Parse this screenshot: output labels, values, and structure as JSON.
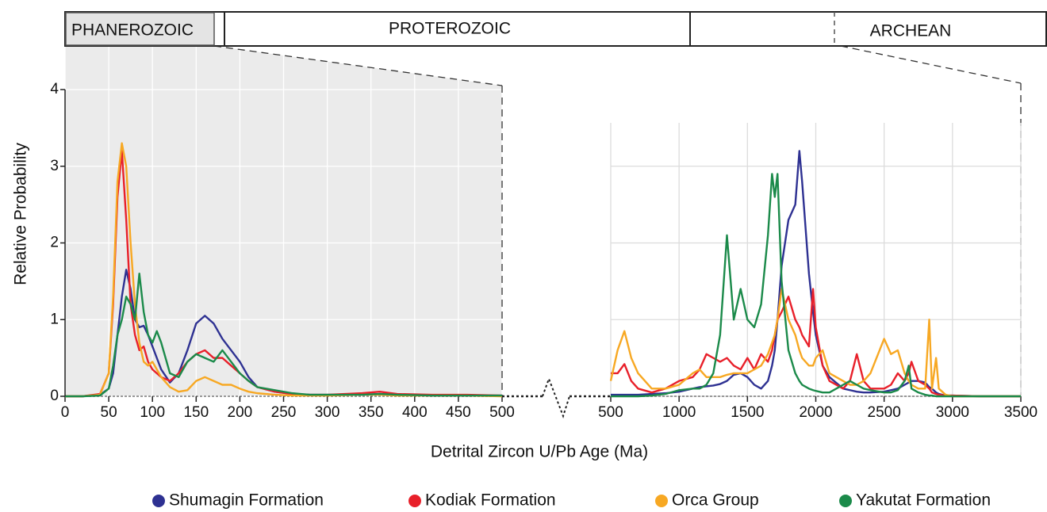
{
  "eons": [
    "PHANEROZOIC",
    "PROTEROZOIC",
    "ARCHEAN"
  ],
  "chart_data": [
    {
      "type": "line",
      "ylabel": "Relative Probability",
      "xlabel": "Detrital Zircon U/Pb Age (Ma)",
      "xlim": [
        0,
        500
      ],
      "xticks": [
        0,
        50,
        100,
        150,
        200,
        250,
        300,
        350,
        400,
        450,
        500
      ],
      "ylim": [
        0,
        4
      ],
      "yticks": [
        0,
        1,
        2,
        3,
        4
      ],
      "grid": true,
      "x": [
        0,
        20,
        40,
        50,
        55,
        60,
        65,
        70,
        75,
        80,
        85,
        90,
        95,
        100,
        105,
        110,
        120,
        130,
        140,
        150,
        160,
        170,
        180,
        190,
        200,
        210,
        220,
        240,
        260,
        280,
        300,
        340,
        360,
        380,
        420,
        460,
        500
      ],
      "series": [
        {
          "name": "Shumagin Formation",
          "color": "#2e3192",
          "values": [
            0,
            0,
            0.02,
            0.1,
            0.3,
            0.8,
            1.3,
            1.65,
            1.4,
            1.0,
            0.9,
            0.92,
            0.8,
            0.65,
            0.5,
            0.35,
            0.18,
            0.3,
            0.6,
            0.95,
            1.05,
            0.95,
            0.75,
            0.6,
            0.45,
            0.25,
            0.12,
            0.06,
            0.03,
            0.02,
            0.02,
            0.02,
            0.03,
            0.02,
            0.01,
            0.01,
            0.01
          ]
        },
        {
          "name": "Kodiak Formation",
          "color": "#e8202a",
          "values": [
            0,
            0,
            0.03,
            0.3,
            1.2,
            2.6,
            3.2,
            2.3,
            1.2,
            0.8,
            0.6,
            0.65,
            0.45,
            0.35,
            0.3,
            0.25,
            0.2,
            0.3,
            0.45,
            0.55,
            0.6,
            0.5,
            0.5,
            0.4,
            0.3,
            0.2,
            0.12,
            0.06,
            0.03,
            0.02,
            0.02,
            0.04,
            0.06,
            0.03,
            0.02,
            0.02,
            0.01
          ]
        },
        {
          "name": "Orca Group",
          "color": "#f7a823",
          "values": [
            0,
            0,
            0.02,
            0.3,
            1.3,
            2.8,
            3.3,
            3.0,
            2.0,
            1.2,
            0.7,
            0.45,
            0.4,
            0.45,
            0.35,
            0.25,
            0.12,
            0.06,
            0.08,
            0.2,
            0.25,
            0.2,
            0.15,
            0.15,
            0.1,
            0.06,
            0.04,
            0.02,
            0.01,
            0.01,
            0.01,
            0.02,
            0.02,
            0.01,
            0.01,
            0.01,
            0
          ]
        },
        {
          "name": "Yakutat Formation",
          "color": "#1b8a4a",
          "values": [
            0,
            0,
            0.01,
            0.1,
            0.4,
            0.8,
            1.0,
            1.3,
            1.2,
            1.0,
            1.6,
            1.1,
            0.8,
            0.7,
            0.85,
            0.7,
            0.3,
            0.25,
            0.45,
            0.55,
            0.5,
            0.45,
            0.6,
            0.45,
            0.3,
            0.2,
            0.12,
            0.08,
            0.04,
            0.02,
            0.02,
            0.02,
            0.03,
            0.02,
            0.01,
            0.01,
            0.01
          ]
        }
      ]
    },
    {
      "type": "line",
      "xlim": [
        500,
        3500
      ],
      "xticks": [
        500,
        1000,
        1500,
        2000,
        2500,
        3000,
        3500
      ],
      "ylim": [
        0,
        4
      ],
      "grid": true,
      "x": [
        500,
        550,
        600,
        650,
        700,
        800,
        900,
        1000,
        1100,
        1150,
        1200,
        1250,
        1300,
        1350,
        1400,
        1450,
        1500,
        1550,
        1600,
        1650,
        1680,
        1700,
        1720,
        1750,
        1800,
        1850,
        1880,
        1900,
        1950,
        1980,
        2000,
        2050,
        2100,
        2200,
        2250,
        2300,
        2350,
        2400,
        2500,
        2550,
        2600,
        2650,
        2680,
        2700,
        2750,
        2800,
        2830,
        2850,
        2880,
        2900,
        2950,
        3000,
        3200,
        3500
      ],
      "series": [
        {
          "color": "#2e3192",
          "values": [
            0.02,
            0.02,
            0.02,
            0.02,
            0.02,
            0.03,
            0.04,
            0.06,
            0.1,
            0.12,
            0.13,
            0.14,
            0.16,
            0.2,
            0.28,
            0.3,
            0.25,
            0.15,
            0.1,
            0.2,
            0.4,
            0.6,
            1.0,
            1.7,
            2.3,
            2.5,
            3.2,
            2.8,
            1.6,
            1.1,
            0.8,
            0.4,
            0.25,
            0.1,
            0.08,
            0.06,
            0.05,
            0.05,
            0.06,
            0.08,
            0.1,
            0.15,
            0.18,
            0.2,
            0.2,
            0.18,
            0.12,
            0.1,
            0.05,
            0.03,
            0.01,
            0.01,
            0,
            0
          ]
        },
        {
          "color": "#e8202a",
          "values": [
            0.3,
            0.3,
            0.42,
            0.2,
            0.1,
            0.05,
            0.1,
            0.2,
            0.25,
            0.35,
            0.55,
            0.5,
            0.45,
            0.5,
            0.4,
            0.35,
            0.5,
            0.35,
            0.55,
            0.45,
            0.6,
            0.8,
            1.0,
            1.1,
            1.3,
            1.0,
            0.9,
            0.8,
            0.65,
            1.4,
            0.9,
            0.4,
            0.2,
            0.1,
            0.2,
            0.55,
            0.2,
            0.1,
            0.1,
            0.15,
            0.3,
            0.2,
            0.3,
            0.45,
            0.2,
            0.15,
            0.1,
            0.05,
            0.03,
            0.02,
            0.01,
            0.01,
            0,
            0
          ]
        },
        {
          "color": "#f7a823",
          "values": [
            0.2,
            0.6,
            0.85,
            0.5,
            0.3,
            0.1,
            0.1,
            0.15,
            0.3,
            0.35,
            0.25,
            0.25,
            0.25,
            0.28,
            0.3,
            0.3,
            0.3,
            0.35,
            0.4,
            0.55,
            0.7,
            0.8,
            1.0,
            1.4,
            1.0,
            0.8,
            0.6,
            0.5,
            0.4,
            0.4,
            0.5,
            0.6,
            0.3,
            0.2,
            0.15,
            0.15,
            0.2,
            0.3,
            0.75,
            0.55,
            0.6,
            0.3,
            0.2,
            0.15,
            0.1,
            0.1,
            1.0,
            0.1,
            0.5,
            0.1,
            0.02,
            0,
            0,
            0
          ]
        },
        {
          "color": "#1b8a4a",
          "values": [
            0,
            0,
            0,
            0,
            0,
            0.01,
            0.03,
            0.08,
            0.1,
            0.1,
            0.15,
            0.3,
            0.8,
            2.1,
            1.0,
            1.4,
            1.0,
            0.9,
            1.2,
            2.1,
            2.9,
            2.6,
            2.9,
            1.5,
            0.6,
            0.3,
            0.2,
            0.15,
            0.1,
            0.08,
            0.07,
            0.05,
            0.05,
            0.15,
            0.2,
            0.15,
            0.1,
            0.08,
            0.05,
            0.05,
            0.08,
            0.2,
            0.4,
            0.1,
            0.05,
            0.02,
            0.01,
            0.01,
            0,
            0,
            0,
            0,
            0,
            0
          ]
        }
      ]
    }
  ]
}
